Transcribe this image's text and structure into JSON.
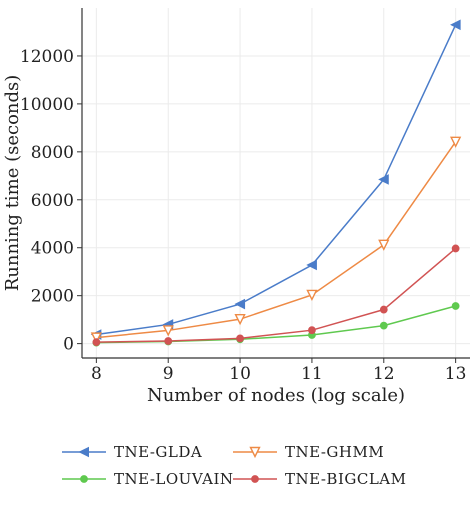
{
  "chart_data": {
    "type": "line",
    "xlabel": "Number of nodes (log scale)",
    "ylabel": "Running time (seconds)",
    "x": [
      8,
      9,
      10,
      11,
      12,
      13
    ],
    "xlim": [
      7.8,
      13.2
    ],
    "ylim": [
      -600,
      14000
    ],
    "xticks": [
      "8",
      "9",
      "10",
      "11",
      "12",
      "13"
    ],
    "yticks": [
      "0",
      "2000",
      "4000",
      "6000",
      "8000",
      "10000",
      "12000"
    ],
    "ytick_values": [
      0,
      2000,
      4000,
      6000,
      8000,
      10000,
      12000
    ],
    "grid": true,
    "legend_position": "bottom",
    "series": [
      {
        "name": "TNE-GLDA",
        "color": "#4a7cc9",
        "marker": "triangle-left",
        "values": [
          380,
          800,
          1650,
          3280,
          6850,
          13300
        ]
      },
      {
        "name": "TNE-GHMM",
        "color": "#ee8a45",
        "marker": "triangle-down",
        "values": [
          250,
          550,
          1020,
          2030,
          4120,
          8420
        ]
      },
      {
        "name": "TNE-LOUVAIN",
        "color": "#5fc94f",
        "marker": "circle",
        "values": [
          40,
          90,
          180,
          360,
          750,
          1570
        ]
      },
      {
        "name": "TNE-BIGCLAM",
        "color": "#d15353",
        "marker": "circle",
        "values": [
          60,
          110,
          220,
          560,
          1420,
          3970
        ]
      }
    ]
  }
}
